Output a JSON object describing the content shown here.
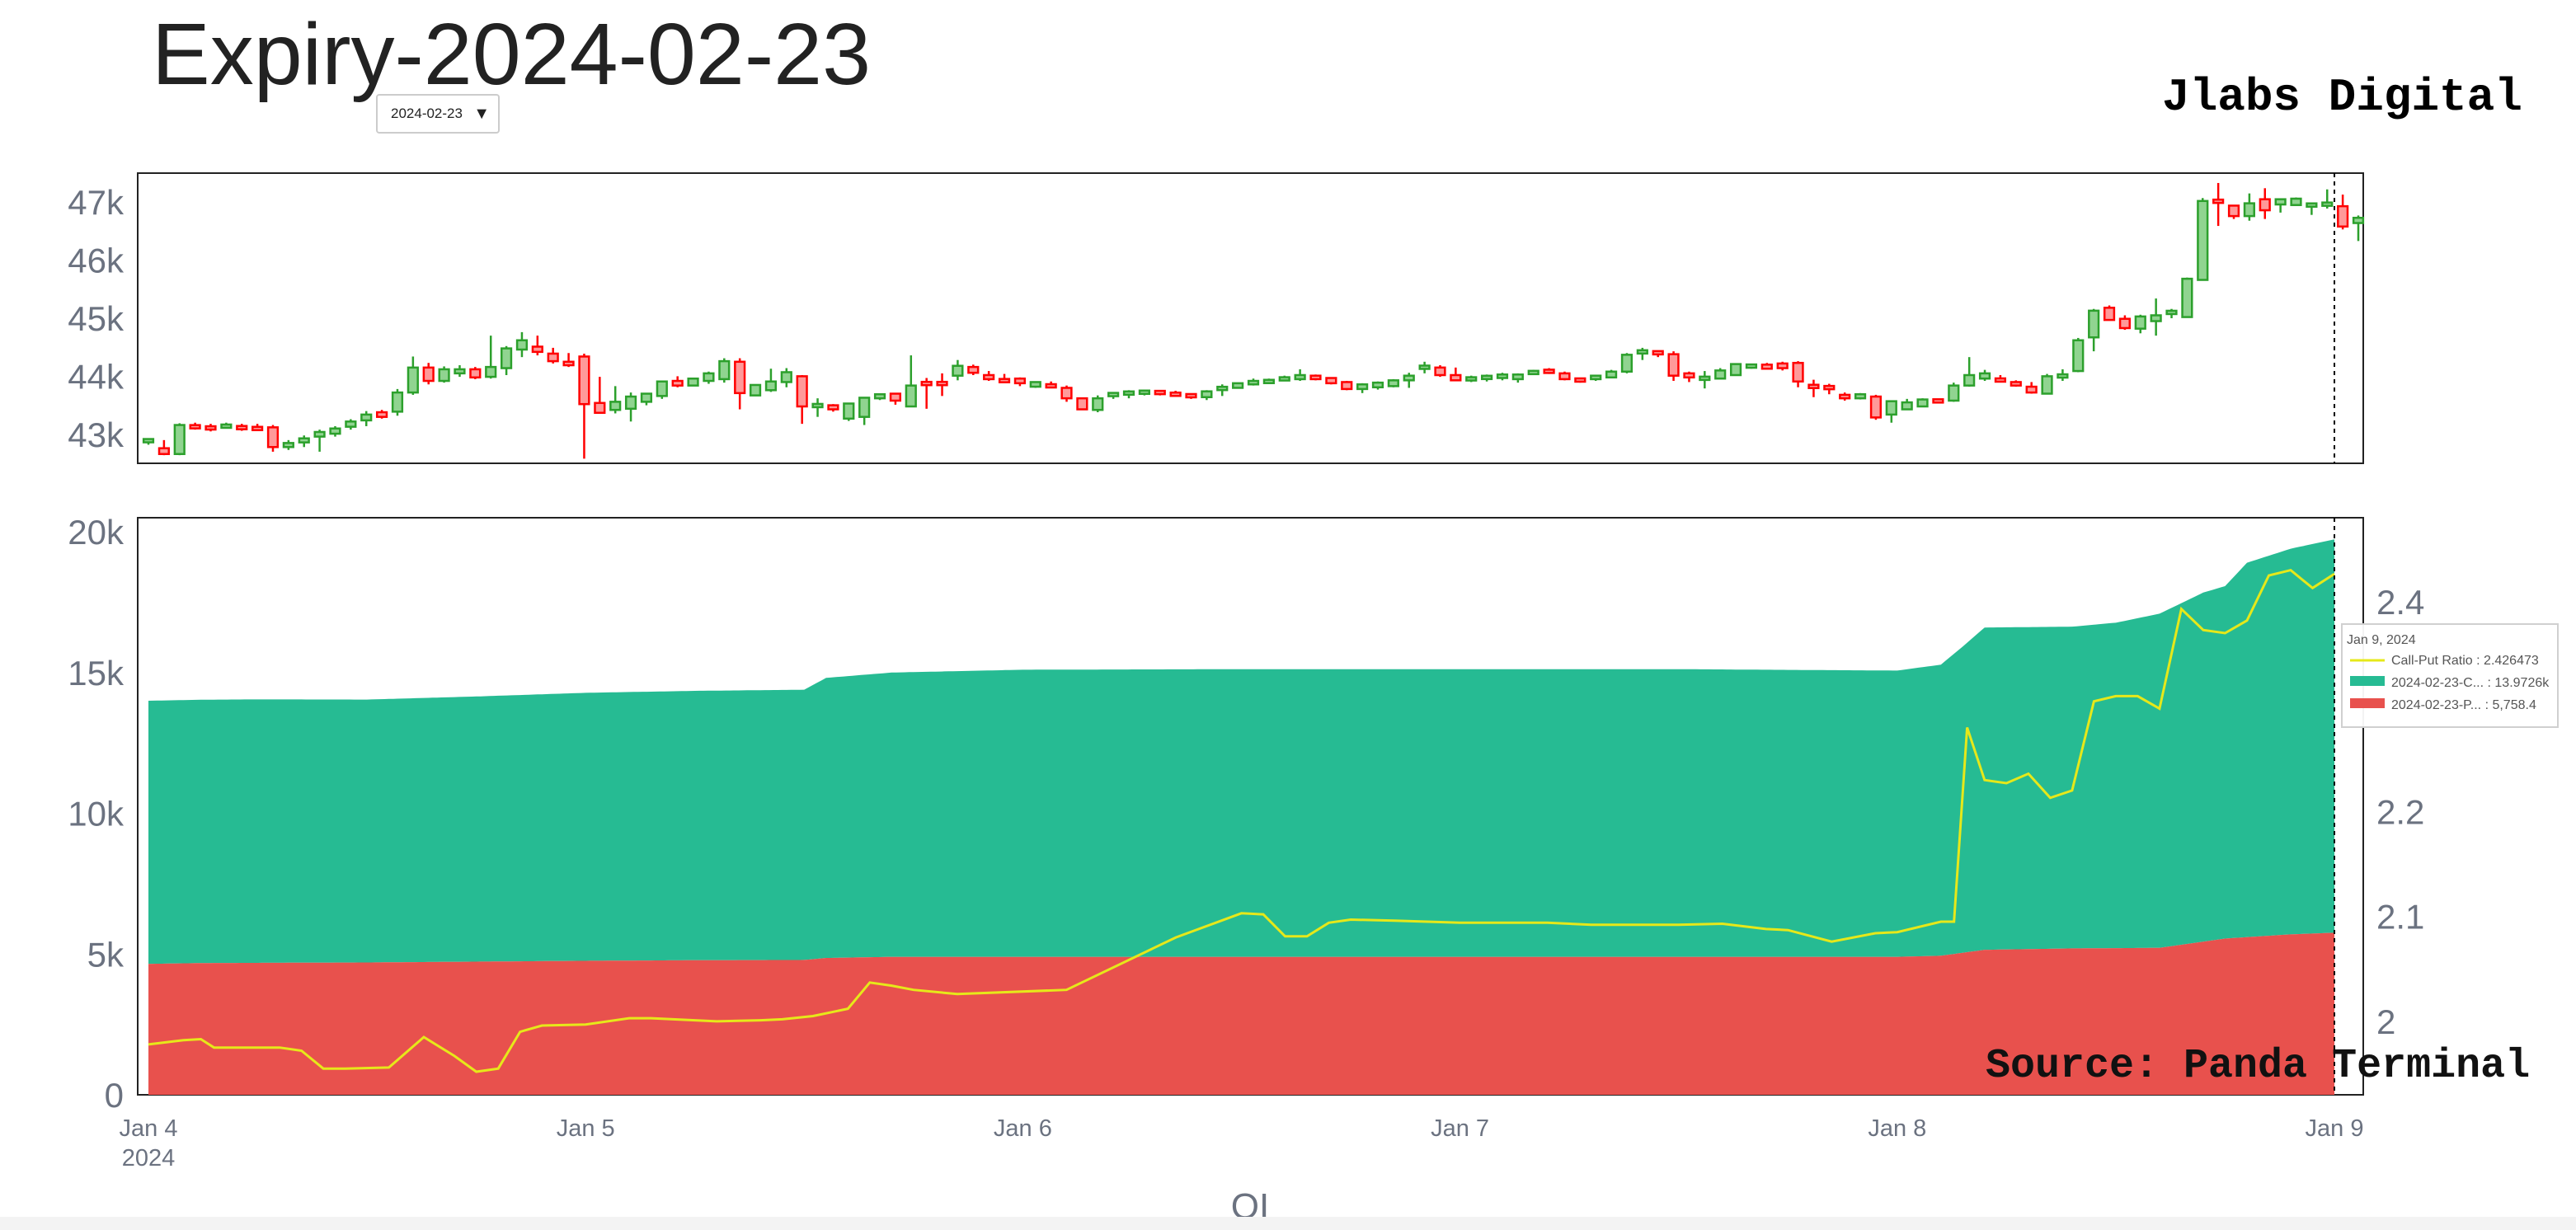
{
  "page": {
    "title": "Expiry-2024-02-23",
    "brand": "Jlabs Digital",
    "expiry_select": {
      "selected": "2024-02-23",
      "arrow_icon": "chevron-down-icon"
    }
  },
  "chart_data": [
    {
      "type": "candlestick",
      "ylim": [
        42500,
        47500
      ],
      "y_ticks": [
        43000,
        44000,
        45000,
        46000,
        47000
      ],
      "y_tick_labels": [
        "43k",
        "44k",
        "45k",
        "46k",
        "47k"
      ],
      "colors": {
        "up": "#2ca02c",
        "down": "#ff0000",
        "up_fill": "#90d490",
        "down_fill": "#ff9999"
      },
      "candles": [
        [
          42880,
          42900,
          42820,
          42900
        ],
        [
          42760,
          42900,
          42640,
          42660
        ],
        [
          42660,
          43190,
          42640,
          43160
        ],
        [
          43140,
          43200,
          43080,
          43120
        ],
        [
          43120,
          43180,
          43050,
          43100
        ],
        [
          43120,
          43200,
          43100,
          43160
        ],
        [
          43130,
          43180,
          43060,
          43100
        ],
        [
          43120,
          43180,
          43060,
          43080
        ],
        [
          43120,
          43160,
          42700,
          42780
        ],
        [
          42780,
          42900,
          42730,
          42850
        ],
        [
          42860,
          42980,
          42780,
          42930
        ],
        [
          42960,
          43080,
          42700,
          43040
        ],
        [
          43010,
          43140,
          42960,
          43100
        ],
        [
          43130,
          43260,
          43080,
          43220
        ],
        [
          43240,
          43400,
          43140,
          43340
        ],
        [
          43380,
          43420,
          43270,
          43300
        ],
        [
          43390,
          43780,
          43320,
          43720
        ],
        [
          43720,
          44340,
          43680,
          44150
        ],
        [
          44150,
          44230,
          43860,
          43920
        ],
        [
          43920,
          44170,
          43890,
          44120
        ],
        [
          44050,
          44190,
          43990,
          44120
        ],
        [
          44120,
          44160,
          43950,
          43980
        ],
        [
          43990,
          44700,
          43960,
          44160
        ],
        [
          44140,
          44520,
          44020,
          44480
        ],
        [
          44460,
          44760,
          44330,
          44620
        ],
        [
          44510,
          44700,
          44360,
          44420
        ],
        [
          44390,
          44490,
          44220,
          44260
        ],
        [
          44250,
          44400,
          44160,
          44190
        ],
        [
          44340,
          44390,
          42580,
          43520
        ],
        [
          43540,
          43990,
          43400,
          43370
        ],
        [
          43420,
          43830,
          43360,
          43560
        ],
        [
          43440,
          43720,
          43220,
          43650
        ],
        [
          43560,
          43700,
          43500,
          43700
        ],
        [
          43660,
          43920,
          43610,
          43910
        ],
        [
          43920,
          44000,
          43810,
          43840
        ],
        [
          43840,
          43960,
          43830,
          43960
        ],
        [
          43920,
          44080,
          43870,
          44050
        ],
        [
          43950,
          44310,
          43890,
          44260
        ],
        [
          44250,
          44310,
          43430,
          43710
        ],
        [
          43670,
          43850,
          43690,
          43850
        ],
        [
          43760,
          44130,
          43730,
          43910
        ],
        [
          43900,
          44140,
          43810,
          44070
        ],
        [
          44000,
          44020,
          43180,
          43480
        ],
        [
          43470,
          43620,
          43300,
          43520
        ],
        [
          43500,
          43520,
          43390,
          43430
        ],
        [
          43270,
          43490,
          43230,
          43530
        ],
        [
          43300,
          43640,
          43160,
          43630
        ],
        [
          43620,
          43700,
          43590,
          43690
        ],
        [
          43700,
          43710,
          43510,
          43580
        ],
        [
          43480,
          44360,
          43480,
          43840
        ],
        [
          43880,
          43970,
          43440,
          43870
        ],
        [
          43900,
          44050,
          43660,
          43850
        ],
        [
          44010,
          44280,
          43930,
          44180
        ],
        [
          44160,
          44200,
          44020,
          44060
        ],
        [
          44020,
          44090,
          43920,
          43950
        ],
        [
          43930,
          44040,
          43900,
          43920
        ],
        [
          43960,
          43980,
          43830,
          43880
        ],
        [
          43820,
          43900,
          43800,
          43900
        ],
        [
          43850,
          43910,
          43810,
          43820
        ],
        [
          43800,
          43840,
          43560,
          43620
        ],
        [
          43620,
          43630,
          43420,
          43430
        ],
        [
          43420,
          43670,
          43380,
          43620
        ],
        [
          43660,
          43720,
          43610,
          43710
        ],
        [
          43700,
          43760,
          43620,
          43720
        ],
        [
          43700,
          43770,
          43670,
          43750
        ],
        [
          43740,
          43760,
          43670,
          43700
        ],
        [
          43700,
          43750,
          43660,
          43680
        ],
        [
          43680,
          43690,
          43610,
          43650
        ],
        [
          43640,
          43760,
          43590,
          43740
        ],
        [
          43780,
          43860,
          43660,
          43800
        ],
        [
          43800,
          43890,
          43790,
          43880
        ],
        [
          43860,
          43960,
          43840,
          43920
        ],
        [
          43900,
          43960,
          43870,
          43920
        ],
        [
          43940,
          44010,
          43920,
          43970
        ],
        [
          43950,
          44120,
          43920,
          44020
        ],
        [
          44010,
          44030,
          43930,
          43950
        ],
        [
          43970,
          43980,
          43860,
          43880
        ],
        [
          43900,
          43920,
          43760,
          43780
        ],
        [
          43780,
          43880,
          43710,
          43860
        ],
        [
          43810,
          43910,
          43770,
          43890
        ],
        [
          43830,
          43950,
          43810,
          43930
        ],
        [
          43930,
          44060,
          43800,
          44010
        ],
        [
          44130,
          44250,
          44050,
          44180
        ],
        [
          44150,
          44190,
          43990,
          44020
        ],
        [
          44020,
          44150,
          43920,
          43930
        ],
        [
          43930,
          44010,
          43900,
          43980
        ],
        [
          43960,
          44030,
          43910,
          44000
        ],
        [
          43970,
          44060,
          43930,
          44030
        ],
        [
          43950,
          44050,
          43890,
          44030
        ],
        [
          44060,
          44110,
          44040,
          44070
        ],
        [
          44100,
          44140,
          44040,
          44070
        ],
        [
          44050,
          44080,
          43930,
          43950
        ],
        [
          43950,
          43960,
          43890,
          43920
        ],
        [
          43950,
          44010,
          43920,
          44010
        ],
        [
          43980,
          44110,
          43980,
          44080
        ],
        [
          44080,
          44400,
          44050,
          44370
        ],
        [
          44400,
          44490,
          44280,
          44440
        ],
        [
          44410,
          44420,
          44330,
          44400
        ],
        [
          44380,
          44430,
          43920,
          44010
        ],
        [
          44050,
          44080,
          43900,
          43980
        ],
        [
          43950,
          44090,
          43790,
          43980
        ],
        [
          43960,
          44140,
          43960,
          44100
        ],
        [
          44020,
          44220,
          44020,
          44210
        ],
        [
          44150,
          44210,
          44130,
          44200
        ],
        [
          44200,
          44230,
          44120,
          44130
        ],
        [
          44220,
          44250,
          44100,
          44140
        ],
        [
          44230,
          44260,
          43810,
          43910
        ],
        [
          43830,
          43940,
          43640,
          43820
        ],
        [
          43830,
          43870,
          43690,
          43780
        ],
        [
          43680,
          43720,
          43580,
          43620
        ],
        [
          43620,
          43710,
          43600,
          43690
        ],
        [
          43650,
          43680,
          43250,
          43290
        ],
        [
          43340,
          43570,
          43200,
          43570
        ],
        [
          43430,
          43610,
          43420,
          43550
        ],
        [
          43480,
          43620,
          43480,
          43600
        ],
        [
          43590,
          43600,
          43540,
          43560
        ],
        [
          43580,
          43890,
          43560,
          43840
        ],
        [
          43840,
          44330,
          43820,
          44020
        ],
        [
          43960,
          44110,
          43920,
          44050
        ],
        [
          43950,
          44020,
          43920,
          43920
        ],
        [
          43900,
          43930,
          43820,
          43840
        ],
        [
          43820,
          43900,
          43700,
          43720
        ],
        [
          43700,
          44040,
          43690,
          44000
        ],
        [
          43990,
          44120,
          43920,
          44020
        ],
        [
          44090,
          44660,
          44070,
          44620
        ],
        [
          44670,
          45160,
          44430,
          45130
        ],
        [
          45180,
          45220,
          44990,
          44970
        ],
        [
          44990,
          45050,
          44800,
          44830
        ],
        [
          44820,
          45060,
          44740,
          45030
        ],
        [
          44950,
          45340,
          44700,
          45050
        ],
        [
          45080,
          45160,
          45000,
          45120
        ],
        [
          45020,
          45700,
          45020,
          45680
        ],
        [
          45660,
          47070,
          45650,
          47020
        ],
        [
          47030,
          47330,
          46590,
          47000
        ],
        [
          46940,
          46950,
          46710,
          46760
        ],
        [
          46760,
          47150,
          46680,
          46980
        ],
        [
          47050,
          47240,
          46710,
          46860
        ],
        [
          46960,
          47050,
          46820,
          47050
        ],
        [
          46950,
          47080,
          46950,
          47060
        ],
        [
          46940,
          46990,
          46780,
          46960
        ],
        [
          46940,
          47220,
          46890,
          46990
        ],
        [
          46930,
          47130,
          46530,
          46580
        ],
        [
          46640,
          46770,
          46330,
          46730
        ]
      ]
    },
    {
      "type": "area",
      "x_ticks": [
        "Jan 4",
        "Jan 5",
        "Jan 6",
        "Jan 7",
        "Jan 8",
        "Jan 9"
      ],
      "x_year_label": "2024",
      "xlabel": "OI",
      "y_ticks_left": [
        0,
        5000,
        10000,
        15000,
        20000
      ],
      "y_tick_labels_left": [
        "0",
        "5k",
        "10k",
        "15k",
        "20k"
      ],
      "ylim_left": [
        0,
        20500
      ],
      "y_ticks_right": [
        2,
        2.1,
        2.2,
        2.4
      ],
      "y_tick_labels_right": [
        "2",
        "2.1",
        "2.2",
        "2.4"
      ],
      "ylim_right": [
        1.93,
        2.48
      ],
      "series": [
        {
          "name": "2024-02-23-P...",
          "color": "#e8514d",
          "x": [
            0,
            0.12,
            0.5,
            0.75,
            1.0,
            1.25,
            1.5,
            1.55,
            1.7,
            2.0,
            2.5,
            3.0,
            3.5,
            4.0,
            4.1,
            4.2,
            4.4,
            4.6,
            4.75,
            4.9,
            5.0
          ],
          "values": [
            4650,
            4680,
            4700,
            4730,
            4760,
            4780,
            4790,
            4860,
            4900,
            4900,
            4900,
            4900,
            4900,
            4900,
            4940,
            5150,
            5200,
            5220,
            5550,
            5700,
            5758.4
          ]
        },
        {
          "name": "2024-02-23-C...",
          "color": "#26bb93",
          "x": [
            0,
            0.25,
            0.5,
            0.75,
            1.0,
            1.25,
            1.5,
            1.55,
            1.7,
            2.0,
            2.5,
            3.0,
            3.5,
            4.0,
            4.1,
            4.15,
            4.2,
            4.4,
            4.5,
            4.6,
            4.7,
            4.75,
            4.8,
            4.9,
            5.0
          ],
          "values": [
            9350,
            9360,
            9340,
            9420,
            9520,
            9570,
            9600,
            9950,
            10100,
            10200,
            10220,
            10220,
            10220,
            10170,
            10340,
            10880,
            11450,
            11430,
            11560,
            11870,
            12400,
            12520,
            13300,
            13700,
            13972.6
          ]
        },
        {
          "name": "Call-Put Ratio",
          "axis": "right",
          "color": "#e6e81a",
          "x": [
            0,
            0.08,
            0.12,
            0.15,
            0.25,
            0.3,
            0.35,
            0.4,
            0.45,
            0.55,
            0.63,
            0.7,
            0.75,
            0.8,
            0.85,
            0.9,
            1.0,
            1.1,
            1.15,
            1.25,
            1.3,
            1.4,
            1.45,
            1.52,
            1.6,
            1.65,
            1.7,
            1.75,
            1.85,
            2.1,
            2.35,
            2.5,
            2.55,
            2.6,
            2.65,
            2.7,
            2.75,
            2.85,
            3.0,
            3.2,
            3.3,
            3.5,
            3.6,
            3.7,
            3.75,
            3.85,
            3.95,
            4.0,
            4.1,
            4.13,
            4.16,
            4.2,
            4.25,
            4.3,
            4.35,
            4.4,
            4.45,
            4.5,
            4.55,
            4.6,
            4.65,
            4.7,
            4.75,
            4.8,
            4.85,
            4.9,
            4.95,
            5.0
          ],
          "values": [
            1.978,
            1.982,
            1.983,
            1.975,
            1.975,
            1.975,
            1.972,
            1.955,
            1.955,
            1.956,
            1.985,
            1.967,
            1.952,
            1.955,
            1.99,
            1.996,
            1.997,
            2.003,
            2.003,
            2.001,
            2.0,
            2.001,
            2.002,
            2.005,
            2.012,
            2.037,
            2.034,
            2.03,
            2.026,
            2.03,
            2.08,
            2.103,
            2.102,
            2.081,
            2.081,
            2.094,
            2.097,
            2.096,
            2.094,
            2.094,
            2.092,
            2.092,
            2.093,
            2.088,
            2.087,
            2.076,
            2.084,
            2.085,
            2.095,
            2.095,
            2.28,
            2.23,
            2.227,
            2.236,
            2.213,
            2.22,
            2.305,
            2.31,
            2.31,
            2.298,
            2.393,
            2.373,
            2.37,
            2.382,
            2.425,
            2.43,
            2.413,
            2.426473
          ]
        }
      ],
      "hover_label": {
        "date": "Jan 9, 2024",
        "rows": [
          "Call-Put Ratio : 2.426473",
          "2024-02-23-C... : 13.9726k",
          "2024-02-23-P... : 5,758.4"
        ]
      },
      "annotation": "Source: Panda Terminal"
    }
  ]
}
